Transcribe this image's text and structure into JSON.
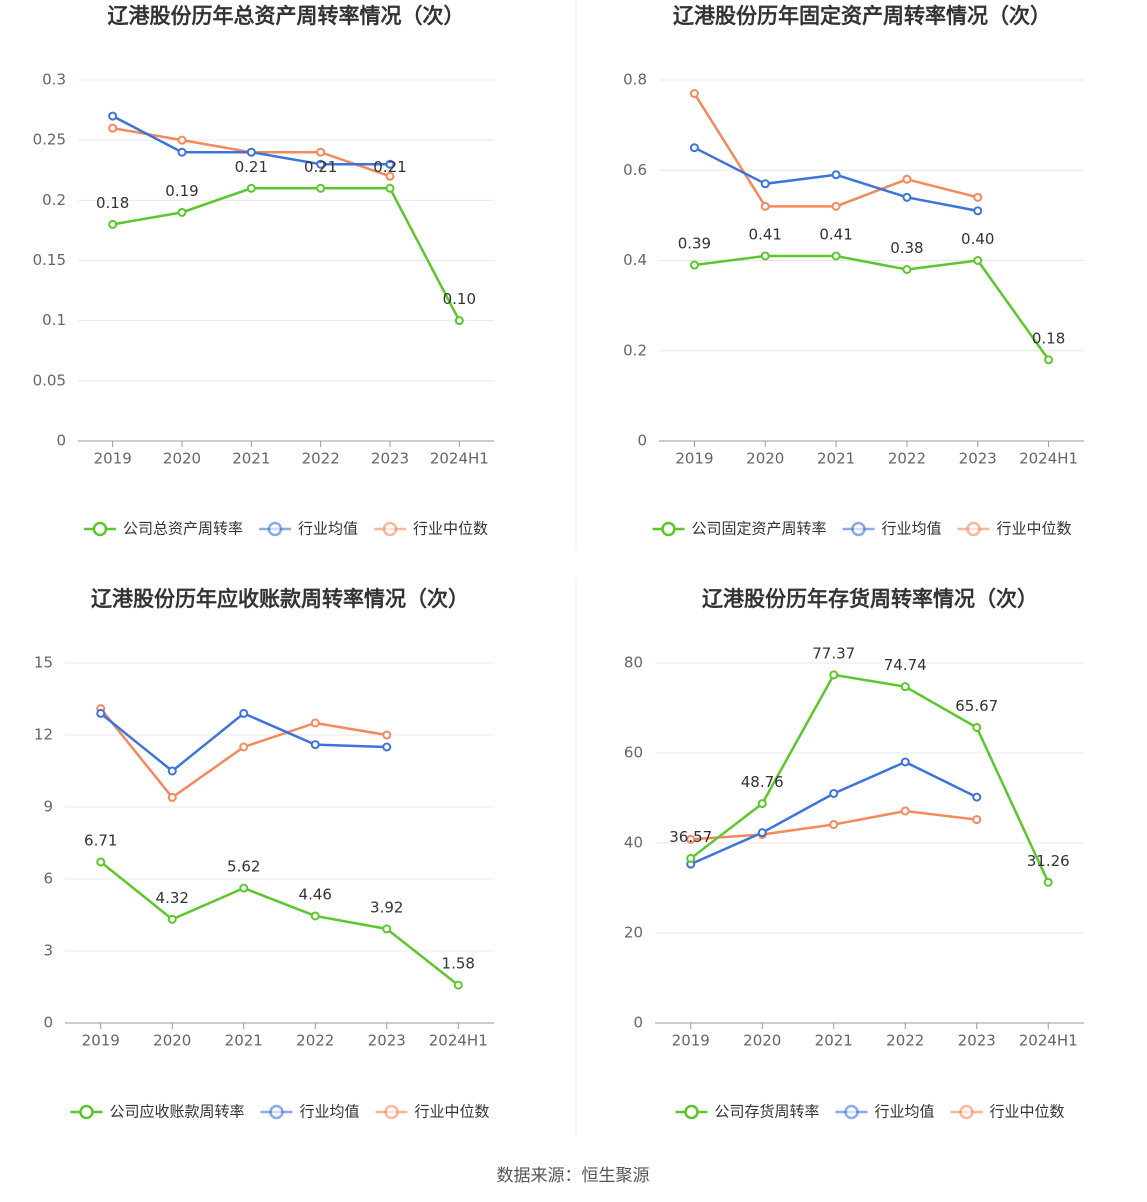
{
  "chart_data": [
    {
      "type": "line",
      "title": "辽港股份历年总资产周转率情况（次）",
      "categories": [
        "2019",
        "2020",
        "2021",
        "2022",
        "2023",
        "2024H1"
      ],
      "series": [
        {
          "name": "公司总资产周转率",
          "color": "#5cc72c",
          "values": [
            0.18,
            0.19,
            0.21,
            0.21,
            0.21,
            0.1
          ],
          "value_labels": [
            "0.18",
            "0.19",
            "0.21",
            "0.21",
            "0.21",
            "0.10"
          ]
        },
        {
          "name": "行业均值",
          "color": "#3d74db",
          "values": [
            0.27,
            0.24,
            0.24,
            0.23,
            0.23,
            null
          ]
        },
        {
          "name": "行业中位数",
          "color": "#f5895e",
          "values": [
            0.26,
            0.25,
            0.24,
            0.24,
            0.22,
            null
          ]
        }
      ],
      "ylim": [
        0,
        0.3
      ],
      "yticks": [
        0,
        0.05,
        0.1,
        0.15,
        0.2,
        0.25,
        0.3
      ],
      "grid": true
    },
    {
      "type": "line",
      "title": "辽港股份历年固定资产周转率情况（次）",
      "categories": [
        "2019",
        "2020",
        "2021",
        "2022",
        "2023",
        "2024H1"
      ],
      "series": [
        {
          "name": "公司固定资产周转率",
          "color": "#5cc72c",
          "values": [
            0.39,
            0.41,
            0.41,
            0.38,
            0.4,
            0.18
          ],
          "value_labels": [
            "0.39",
            "0.41",
            "0.41",
            "0.38",
            "0.40",
            "0.18"
          ]
        },
        {
          "name": "行业均值",
          "color": "#3d74db",
          "values": [
            0.65,
            0.57,
            0.59,
            0.54,
            0.51,
            null
          ]
        },
        {
          "name": "行业中位数",
          "color": "#f5895e",
          "values": [
            0.77,
            0.52,
            0.52,
            0.58,
            0.54,
            null
          ]
        }
      ],
      "ylim": [
        0,
        0.8
      ],
      "yticks": [
        0,
        0.2,
        0.4,
        0.6,
        0.8
      ],
      "grid": true
    },
    {
      "type": "line",
      "title": "辽港股份历年应收账款周转率情况（次）",
      "categories": [
        "2019",
        "2020",
        "2021",
        "2022",
        "2023",
        "2024H1"
      ],
      "series": [
        {
          "name": "公司应收账款周转率",
          "color": "#5cc72c",
          "values": [
            6.71,
            4.32,
            5.62,
            4.46,
            3.92,
            1.58
          ]
        },
        {
          "name": "行业均值",
          "color": "#3d74db",
          "values": [
            12.9,
            10.5,
            12.9,
            11.6,
            11.5,
            null
          ]
        },
        {
          "name": "行业中位数",
          "color": "#f5895e",
          "values": [
            13.1,
            9.4,
            11.5,
            12.5,
            12.0,
            null
          ]
        }
      ],
      "ylim": [
        0,
        15
      ],
      "yticks": [
        0,
        3,
        6,
        9,
        12,
        15
      ],
      "grid": true
    },
    {
      "type": "line",
      "title": "辽港股份历年存货周转率情况（次）",
      "categories": [
        "2019",
        "2020",
        "2021",
        "2022",
        "2023",
        "2024H1"
      ],
      "series": [
        {
          "name": "公司存货周转率",
          "color": "#5cc72c",
          "values": [
            36.57,
            48.76,
            77.37,
            74.74,
            65.67,
            31.26
          ]
        },
        {
          "name": "行业均值",
          "color": "#3d74db",
          "values": [
            35.3,
            42.3,
            51.0,
            58.0,
            50.2,
            null
          ]
        },
        {
          "name": "行业中位数",
          "color": "#f5895e",
          "values": [
            40.8,
            41.9,
            44.1,
            47.1,
            45.2,
            null
          ]
        }
      ],
      "ylim": [
        0,
        80
      ],
      "yticks": [
        0,
        20,
        40,
        60,
        80
      ],
      "grid": true
    }
  ],
  "source": "数据来源：恒生聚源"
}
